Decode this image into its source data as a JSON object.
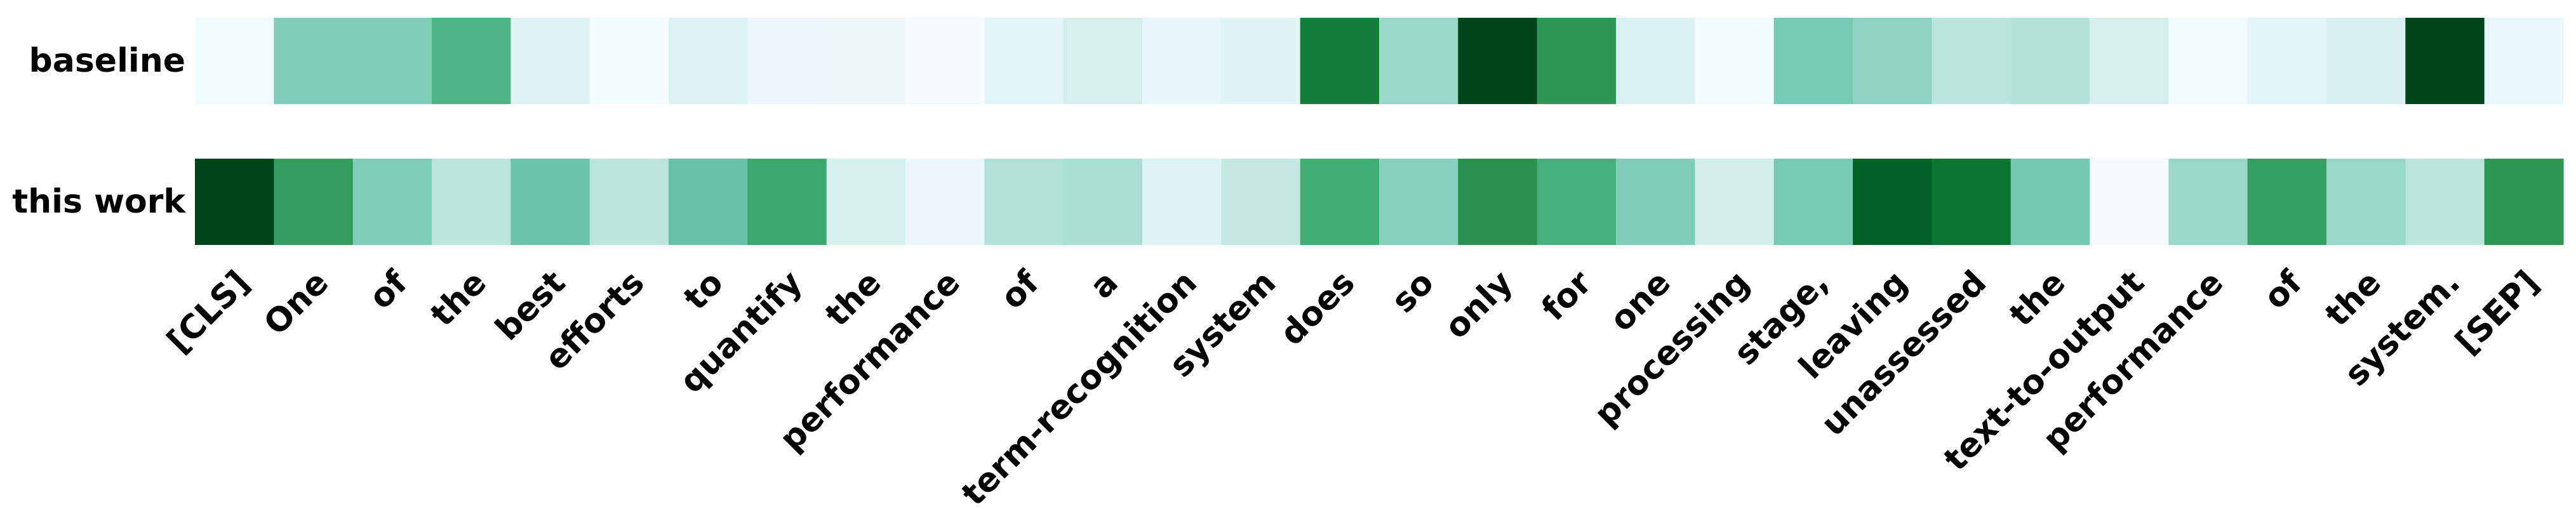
{
  "chart_data": {
    "type": "heatmap",
    "colormap": "Greens",
    "rows": [
      "baseline",
      "this work"
    ],
    "tokens": [
      "[CLS]",
      "One",
      "of",
      "the",
      "best",
      "efforts",
      "to",
      "quantify",
      "the",
      "performance",
      "of",
      "a",
      "term-recognition",
      "system",
      "does",
      "so",
      "only",
      "for",
      "one",
      "processing",
      "stage,",
      "leaving",
      "unassessed",
      "the",
      "text-to-output",
      "performance",
      "of",
      "the",
      "system.",
      "[SEP]"
    ],
    "values": [
      [
        0.05,
        0.52,
        0.52,
        0.68,
        0.2,
        0.03,
        0.2,
        0.1,
        0.08,
        0.02,
        0.17,
        0.25,
        0.15,
        0.18,
        0.88,
        0.45,
        1.0,
        0.8,
        0.22,
        0.05,
        0.55,
        0.48,
        0.35,
        0.37,
        0.25,
        0.05,
        0.17,
        0.23,
        1.0,
        0.12
      ],
      [
        1.0,
        0.78,
        0.52,
        0.35,
        0.58,
        0.35,
        0.6,
        0.74,
        0.24,
        0.1,
        0.38,
        0.4,
        0.2,
        0.32,
        0.72,
        0.5,
        0.82,
        0.7,
        0.52,
        0.27,
        0.55,
        0.95,
        0.9,
        0.56,
        0.02,
        0.45,
        0.77,
        0.45,
        0.35,
        0.8
      ]
    ]
  }
}
